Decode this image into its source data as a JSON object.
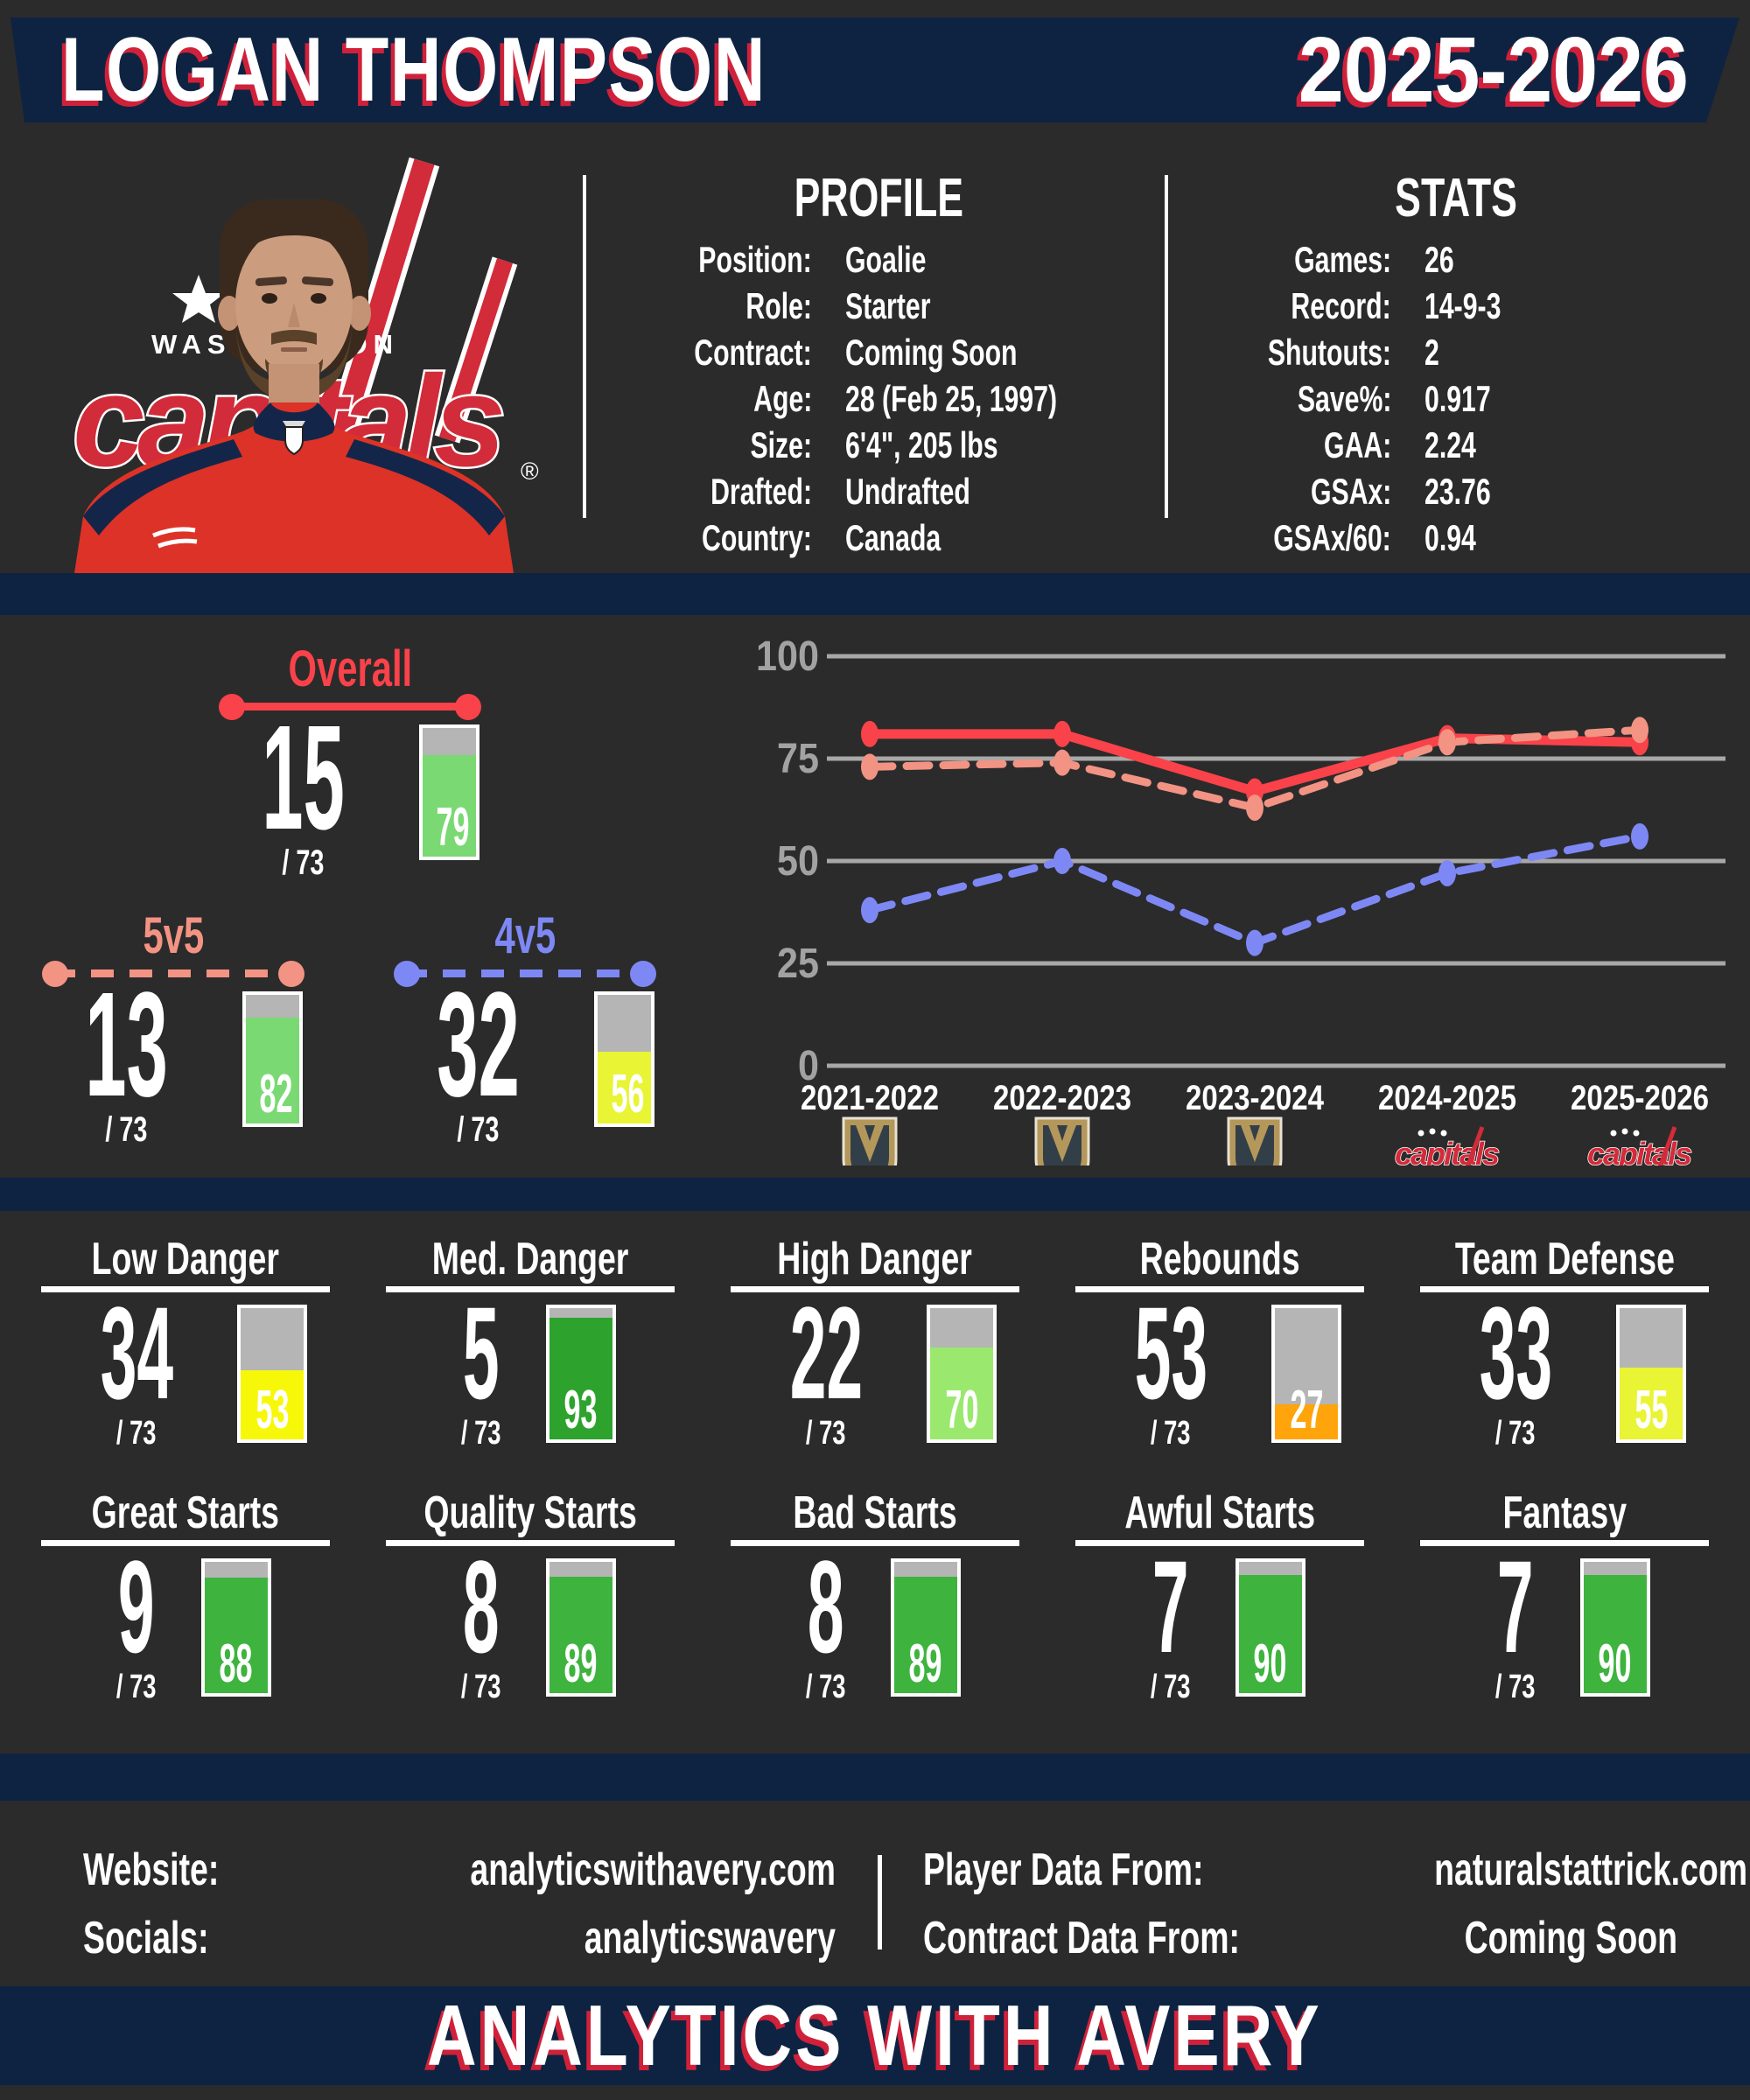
{
  "header": {
    "player_name": "LOGAN THOMPSON",
    "season": "2025-2026"
  },
  "team": {
    "name": "Washington Capitals",
    "wordmark_city": "WASHINGTON",
    "wordmark_script": "capitals",
    "registered_mark": "®"
  },
  "profile": {
    "title": "PROFILE",
    "rows": [
      {
        "label": "Position:",
        "value": "Goalie"
      },
      {
        "label": "Role:",
        "value": "Starter"
      },
      {
        "label": "Contract:",
        "value": "Coming Soon"
      },
      {
        "label": "Age:",
        "value": "28 (Feb 25, 1997)"
      },
      {
        "label": "Size:",
        "value": "6'4\", 205 lbs"
      },
      {
        "label": "Drafted:",
        "value": "Undrafted"
      },
      {
        "label": "Country:",
        "value": "Canada"
      }
    ]
  },
  "stats": {
    "title": "STATS",
    "rows": [
      {
        "label": "Games:",
        "value": "26"
      },
      {
        "label": "Record:",
        "value": "14-9-3"
      },
      {
        "label": "Shutouts:",
        "value": "2"
      },
      {
        "label": "Save%:",
        "value": "0.917"
      },
      {
        "label": "GAA:",
        "value": "2.24"
      },
      {
        "label": "GSAx:",
        "value": "23.76"
      },
      {
        "label": "GSAx/60:",
        "value": "0.94"
      }
    ]
  },
  "rank_cards": [
    {
      "title": "Overall",
      "rank": "15",
      "denom": "/ 73",
      "percentile": 79,
      "accent": "#f94249",
      "line_style": "solid",
      "fill": "#7ad973"
    },
    {
      "title": "5v5",
      "rank": "13",
      "denom": "/ 73",
      "percentile": 82,
      "accent": "#f29384",
      "line_style": "dashed",
      "fill": "#7ad973"
    },
    {
      "title": "4v5",
      "rank": "32",
      "denom": "/ 73",
      "percentile": 56,
      "accent": "#7e88f4",
      "line_style": "dashed",
      "fill": "#e8f434"
    }
  ],
  "chart_data": {
    "type": "line",
    "title": "",
    "xlabel": "",
    "ylabel": "",
    "x": [
      "2021-2022",
      "2022-2023",
      "2023-2024",
      "2024-2025",
      "2025-2026"
    ],
    "x_logos": [
      "vegas-golden-knights",
      "vegas-golden-knights",
      "vegas-golden-knights",
      "washington-capitals",
      "washington-capitals"
    ],
    "series": [
      {
        "name": "Overall",
        "style": "solid",
        "color": "#f94249",
        "values": [
          81,
          81,
          67,
          80,
          79
        ]
      },
      {
        "name": "5v5",
        "style": "dashed",
        "color": "#f29384",
        "values": [
          73,
          74,
          63,
          79,
          82
        ]
      },
      {
        "name": "4v5",
        "style": "dashed",
        "color": "#7e88f4",
        "values": [
          38,
          50,
          30,
          47,
          56
        ]
      }
    ],
    "ylim": [
      0,
      100
    ],
    "yticks": [
      0,
      25,
      50,
      75,
      100
    ],
    "grid": true,
    "legend_position": "none"
  },
  "stat_cards": [
    {
      "title": "Low Danger",
      "rank": "34",
      "denom": "/ 73",
      "percentile": 53,
      "fill": "#f7f70a"
    },
    {
      "title": "Med. Danger",
      "rank": "5",
      "denom": "/ 73",
      "percentile": 93,
      "fill": "#2da32d"
    },
    {
      "title": "High Danger",
      "rank": "22",
      "denom": "/ 73",
      "percentile": 70,
      "fill": "#9ae96e"
    },
    {
      "title": "Rebounds",
      "rank": "53",
      "denom": "/ 73",
      "percentile": 27,
      "fill": "#ffa40a"
    },
    {
      "title": "Team Defense",
      "rank": "33",
      "denom": "/ 73",
      "percentile": 55,
      "fill": "#e8f434"
    },
    {
      "title": "Great Starts",
      "rank": "9",
      "denom": "/ 73",
      "percentile": 88,
      "fill": "#3eb33e"
    },
    {
      "title": "Quality Starts",
      "rank": "8",
      "denom": "/ 73",
      "percentile": 89,
      "fill": "#3eb33e"
    },
    {
      "title": "Bad Starts",
      "rank": "8",
      "denom": "/ 73",
      "percentile": 89,
      "fill": "#3eb33e"
    },
    {
      "title": "Awful Starts",
      "rank": "7",
      "denom": "/ 73",
      "percentile": 90,
      "fill": "#3eb33e"
    },
    {
      "title": "Fantasy",
      "rank": "7",
      "denom": "/ 73",
      "percentile": 90,
      "fill": "#3eb33e"
    }
  ],
  "footer": {
    "left": [
      {
        "label": "Website:",
        "value": "analyticswithavery.com"
      },
      {
        "label": "Socials:",
        "value": "analyticswavery"
      }
    ],
    "right": [
      {
        "label": "Player Data From:",
        "value": "naturalstattrick.com"
      },
      {
        "label": "Contract Data From:",
        "value": "Coming Soon"
      }
    ]
  },
  "banner": {
    "text": "ANALYTICS WITH AVERY"
  },
  "colors": {
    "background": "#2b2b2b",
    "navy": "#0e2342",
    "shadow_red": "#d0213a",
    "accent_red": "#f94249",
    "salmon": "#f29384",
    "periwinkle": "#7e88f4",
    "grid_gray": "#a8a8a8",
    "bar_track_gray": "#b5b5b5",
    "white": "#ffffff"
  }
}
